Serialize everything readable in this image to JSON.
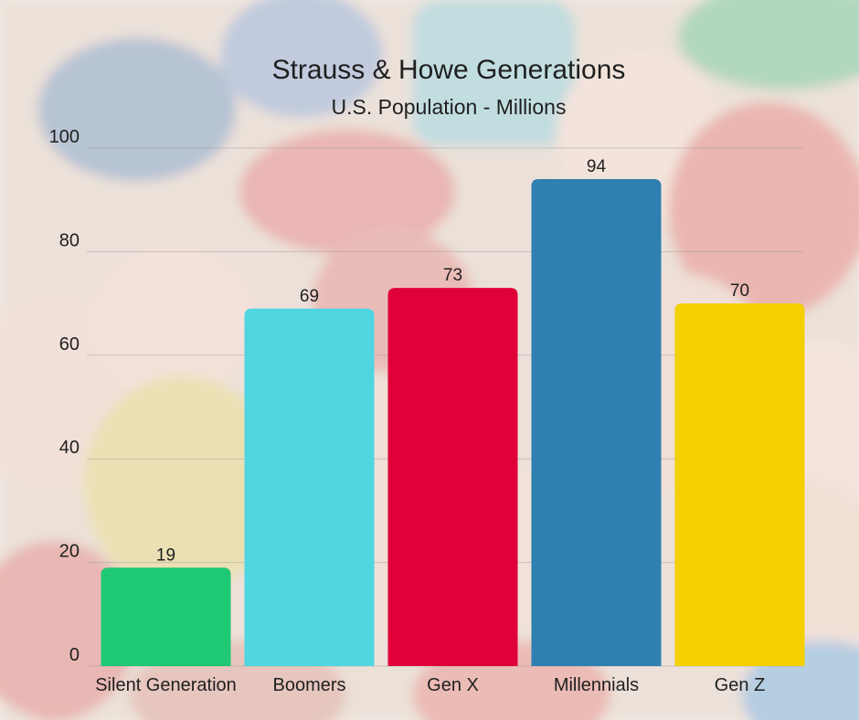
{
  "chart_data": {
    "type": "bar",
    "title": "Strauss & Howe Generations",
    "subtitle": "U.S. Population - Millions",
    "xlabel": "",
    "ylabel": "",
    "categories": [
      "Silent Generation",
      "Boomers",
      "Gen X",
      "Millennials",
      "Gen Z"
    ],
    "values": [
      19,
      69,
      73,
      94,
      70
    ],
    "colors": [
      "#1fc873",
      "#4fd6e0",
      "#e0003a",
      "#2f7fb0",
      "#f4d000"
    ],
    "ylim": [
      0,
      100
    ],
    "yticks": [
      0,
      20,
      40,
      60,
      80,
      100
    ],
    "grid": true,
    "data_labels": true,
    "legend": "none"
  }
}
